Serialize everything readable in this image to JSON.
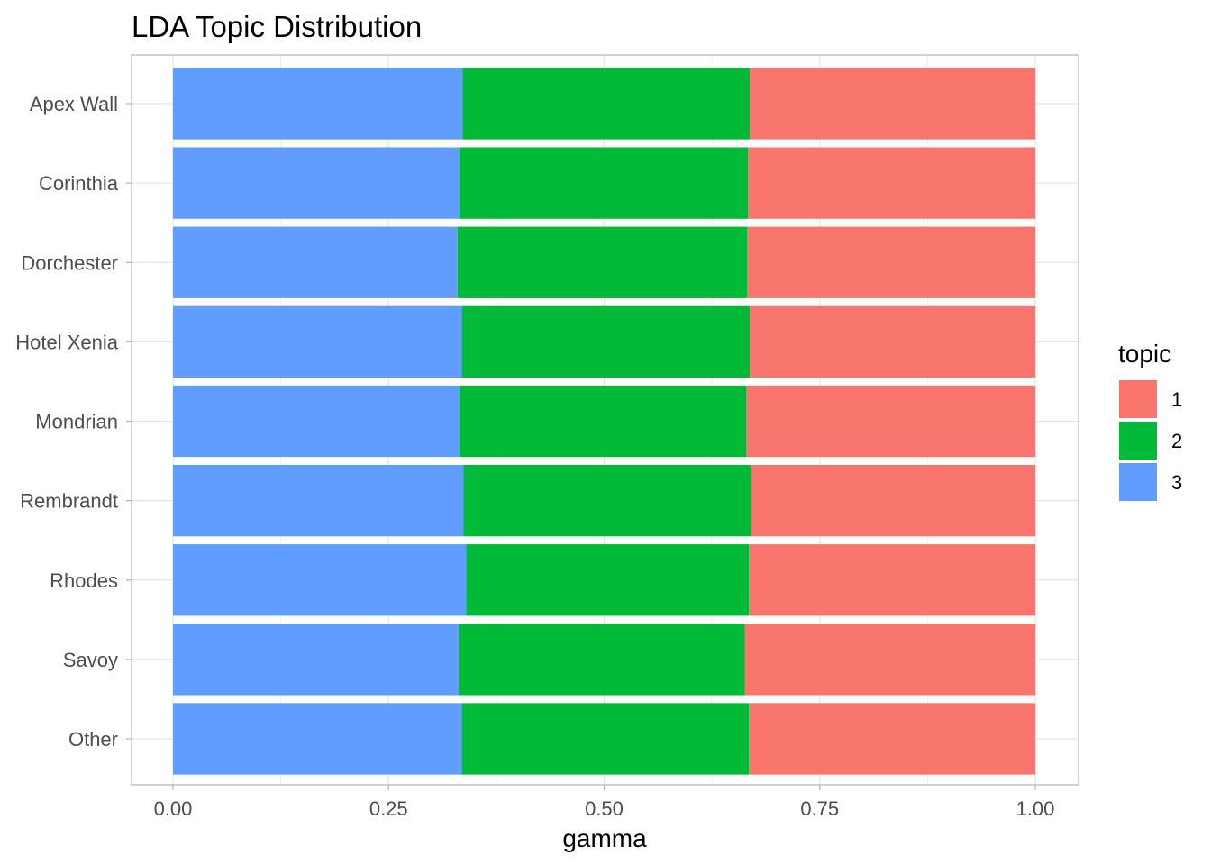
{
  "chart_data": {
    "type": "bar",
    "orientation": "horizontal",
    "stacked": true,
    "title": "LDA Topic Distribution",
    "xlabel": "gamma",
    "ylabel": "",
    "xlim": [
      0,
      1
    ],
    "xticks": [
      "0.00",
      "0.25",
      "0.50",
      "0.75",
      "1.00"
    ],
    "grid": true,
    "legend": {
      "title": "topic",
      "position": "right"
    },
    "categories": [
      "Apex Wall",
      "Corinthia",
      "Dorchester",
      "Hotel Xenia",
      "Mondrian",
      "Rembrandt",
      "Rhodes",
      "Savoy",
      "Other"
    ],
    "series": [
      {
        "name": "3",
        "color": "#619CFF",
        "values": [
          0.336,
          0.332,
          0.33,
          0.335,
          0.332,
          0.337,
          0.34,
          0.331,
          0.335
        ]
      },
      {
        "name": "2",
        "color": "#00BA38",
        "values": [
          0.333,
          0.335,
          0.336,
          0.334,
          0.333,
          0.333,
          0.328,
          0.332,
          0.333
        ]
      },
      {
        "name": "1",
        "color": "#F8766D",
        "values": [
          0.331,
          0.333,
          0.334,
          0.331,
          0.335,
          0.33,
          0.332,
          0.337,
          0.332
        ]
      }
    ],
    "legend_order": [
      "1",
      "2",
      "3"
    ]
  },
  "colors": {
    "grid": "#e5e5e5",
    "panel_border": "#b3b3b3",
    "tick_text": "#4d4d4d"
  }
}
